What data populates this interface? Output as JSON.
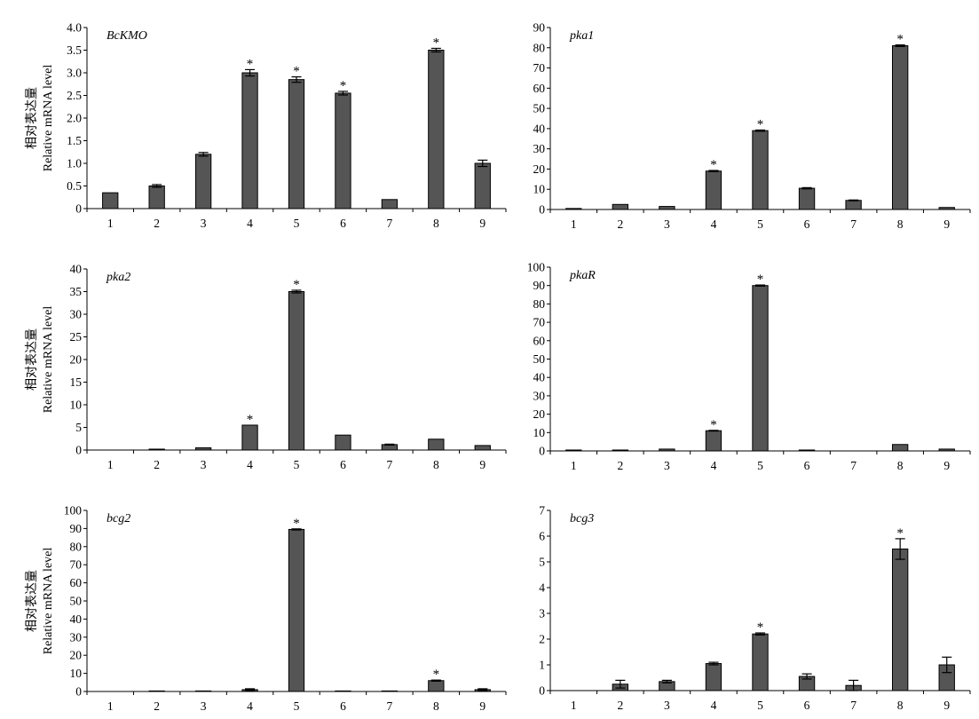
{
  "figure": {
    "ylabel_cn": "相对表达量",
    "ylabel_en": "Relative mRNA level"
  },
  "colors": {
    "bar": "#555555",
    "axis": "#000000"
  },
  "chart_data": [
    {
      "type": "bar",
      "title": "BcKMO",
      "categories": [
        "1",
        "2",
        "3",
        "4",
        "5",
        "6",
        "7",
        "8",
        "9"
      ],
      "values": [
        0.35,
        0.5,
        1.2,
        3.0,
        2.85,
        2.55,
        0.2,
        3.5,
        1.0
      ],
      "errors": [
        0,
        0.03,
        0.04,
        0.07,
        0.06,
        0.04,
        0,
        0.04,
        0.07
      ],
      "significant": [
        false,
        false,
        false,
        true,
        true,
        true,
        false,
        true,
        false
      ],
      "significance_marker": "*",
      "ylim": [
        0,
        4.0
      ],
      "yticks": [
        "0",
        "0.5",
        "1.0",
        "1.5",
        "2.0",
        "2.5",
        "3.0",
        "3.5",
        "4.0"
      ],
      "ylabel": "相对表达量 Relative mRNA level",
      "grid": false
    },
    {
      "type": "bar",
      "title": "pka1",
      "categories": [
        "1",
        "2",
        "3",
        "4",
        "5",
        "6",
        "7",
        "8",
        "9"
      ],
      "values": [
        0.5,
        2.5,
        1.5,
        19,
        39,
        10.5,
        4.5,
        81,
        1
      ],
      "errors": [
        0,
        0,
        0,
        0.3,
        0.3,
        0.3,
        0.2,
        0.4,
        0
      ],
      "significant": [
        false,
        false,
        false,
        true,
        true,
        false,
        false,
        true,
        false
      ],
      "significance_marker": "*",
      "ylim": [
        0,
        90
      ],
      "yticks": [
        "0",
        "10",
        "20",
        "30",
        "40",
        "50",
        "60",
        "70",
        "80",
        "90"
      ],
      "ylabel": "",
      "grid": false
    },
    {
      "type": "bar",
      "title": "pka2",
      "categories": [
        "1",
        "2",
        "3",
        "4",
        "5",
        "6",
        "7",
        "8",
        "9"
      ],
      "values": [
        0,
        0.2,
        0.5,
        5.5,
        35,
        3.3,
        1.2,
        2.4,
        1.0
      ],
      "errors": [
        0,
        0,
        0,
        0,
        0.3,
        0,
        0.1,
        0,
        0
      ],
      "significant": [
        false,
        false,
        false,
        true,
        true,
        false,
        false,
        false,
        false
      ],
      "significance_marker": "*",
      "ylim": [
        0,
        40
      ],
      "yticks": [
        "0",
        "5",
        "10",
        "15",
        "20",
        "25",
        "30",
        "35",
        "40"
      ],
      "ylabel": "相对表达量 Relative mRNA level",
      "grid": false
    },
    {
      "type": "bar",
      "title": "pkaR",
      "categories": [
        "1",
        "2",
        "3",
        "4",
        "5",
        "6",
        "7",
        "8",
        "9"
      ],
      "values": [
        0.5,
        0.5,
        1,
        11,
        90,
        0.5,
        0,
        3.5,
        1
      ],
      "errors": [
        0,
        0,
        0,
        0.2,
        0.3,
        0,
        0,
        0,
        0
      ],
      "significant": [
        false,
        false,
        false,
        true,
        true,
        false,
        false,
        false,
        false
      ],
      "significance_marker": "*",
      "ylim": [
        0,
        100
      ],
      "yticks": [
        "0",
        "10",
        "20",
        "30",
        "40",
        "50",
        "60",
        "70",
        "80",
        "90",
        "100"
      ],
      "ylabel": "",
      "grid": false
    },
    {
      "type": "bar",
      "title": "bcg2",
      "categories": [
        "1",
        "2",
        "3",
        "4",
        "5",
        "6",
        "7",
        "8",
        "9"
      ],
      "values": [
        0,
        0.3,
        0.3,
        1,
        89.5,
        0.3,
        0.3,
        6,
        1
      ],
      "errors": [
        0,
        0,
        0,
        0.5,
        0.3,
        0,
        0,
        0.3,
        0.5
      ],
      "significant": [
        false,
        false,
        false,
        false,
        true,
        false,
        false,
        true,
        false
      ],
      "significance_marker": "*",
      "ylim": [
        0,
        100
      ],
      "yticks": [
        "0",
        "10",
        "20",
        "30",
        "40",
        "50",
        "60",
        "70",
        "80",
        "90",
        "100"
      ],
      "ylabel": "相对表达量 Relative mRNA level",
      "grid": false
    },
    {
      "type": "bar",
      "title": "bcg3",
      "categories": [
        "1",
        "2",
        "3",
        "4",
        "5",
        "6",
        "7",
        "8",
        "9"
      ],
      "values": [
        0,
        0.25,
        0.35,
        1.05,
        2.2,
        0.55,
        0.2,
        5.5,
        1.0
      ],
      "errors": [
        0,
        0.15,
        0.05,
        0.05,
        0.04,
        0.1,
        0.2,
        0.4,
        0.3
      ],
      "significant": [
        false,
        false,
        false,
        false,
        true,
        false,
        false,
        true,
        false
      ],
      "significance_marker": "*",
      "ylim": [
        0,
        7
      ],
      "yticks": [
        "0",
        "1",
        "2",
        "3",
        "4",
        "5",
        "6",
        "7"
      ],
      "ylabel": "",
      "grid": false
    }
  ]
}
